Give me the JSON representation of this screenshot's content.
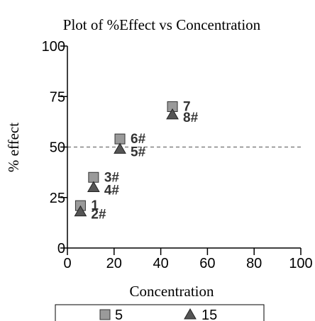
{
  "chart_data": {
    "type": "scatter",
    "title": "Plot of %Effect vs Concentration",
    "xlabel": "Concentration",
    "ylabel": "% effect",
    "xlim": [
      0,
      100
    ],
    "ylim": [
      0,
      100
    ],
    "x_ticks": [
      "0",
      "20",
      "40",
      "60",
      "80",
      "100"
    ],
    "y_ticks": [
      "0",
      "25",
      "50",
      "75",
      "100"
    ],
    "reference_line": {
      "y": 50,
      "style": "dashed"
    },
    "legend_position": "bottom",
    "series": [
      {
        "name": "5",
        "marker": "square",
        "color": "#9a9a9a",
        "points": [
          {
            "x": 5.6,
            "y": 21,
            "label": "1"
          },
          {
            "x": 11.2,
            "y": 35,
            "label": "3#"
          },
          {
            "x": 22.5,
            "y": 54,
            "label": "6#"
          },
          {
            "x": 45,
            "y": 70,
            "label": "7"
          }
        ]
      },
      {
        "name": "15",
        "marker": "triangle",
        "color": "#555555",
        "points": [
          {
            "x": 5.6,
            "y": 18,
            "label": "2#"
          },
          {
            "x": 11.2,
            "y": 30,
            "label": "4#"
          },
          {
            "x": 22.5,
            "y": 49,
            "label": "5#"
          },
          {
            "x": 45,
            "y": 66,
            "label": "8#"
          }
        ]
      }
    ]
  }
}
